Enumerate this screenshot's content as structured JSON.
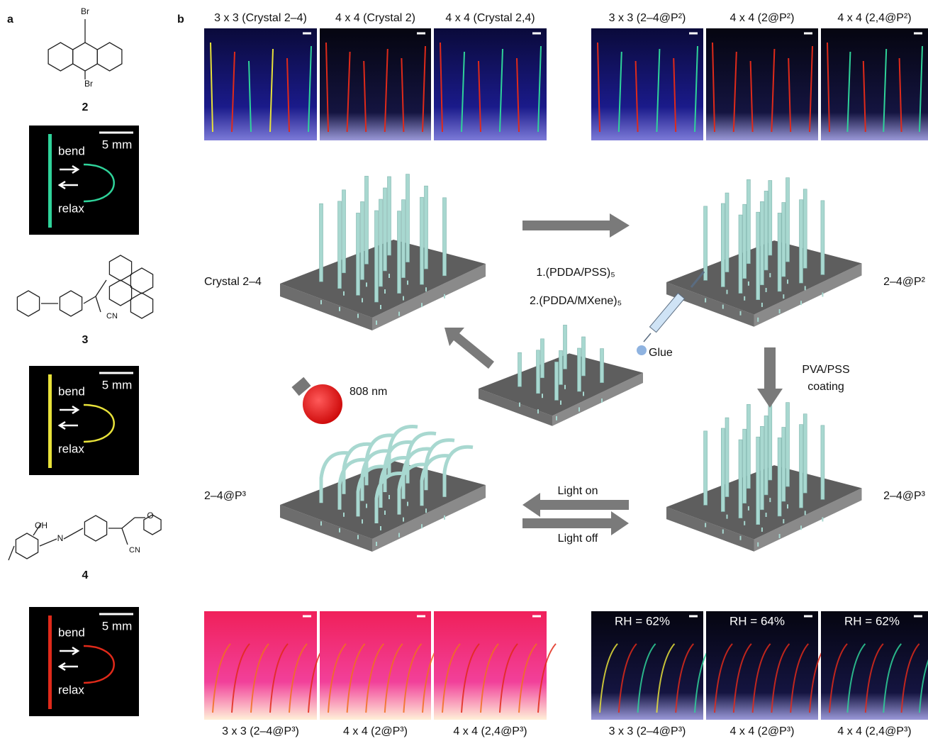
{
  "panel_a": {
    "label": "a",
    "compounds": [
      {
        "number": "2",
        "atoms": [
          "Br",
          "Br"
        ]
      },
      {
        "number": "3",
        "atoms": [
          "CN"
        ]
      },
      {
        "number": "4",
        "atoms": [
          "OH",
          "N",
          "CN",
          "O"
        ]
      }
    ],
    "photos": [
      {
        "scale_bar": "5 mm",
        "bend": "bend",
        "relax": "relax"
      },
      {
        "scale_bar": "5 mm",
        "bend": "bend",
        "relax": "relax"
      },
      {
        "scale_bar": "5 mm",
        "bend": "bend",
        "relax": "relax"
      }
    ]
  },
  "panel_b": {
    "label": "b",
    "top_photos": [
      "3 x 3 (Crystal 2–4)",
      "4 x 4 (Crystal 2)",
      "4 x 4 (Crystal 2,4)",
      "3 x 3 (2–4@P²)",
      "4 x 4 (2@P²)",
      "4 x 4 (2,4@P²)"
    ],
    "bottom_photos": [
      {
        "caption": "3 x 3 (2–4@P³)"
      },
      {
        "caption": "4 x 4 (2@P³)"
      },
      {
        "caption": "4 x 4 (2,4@P³)"
      },
      {
        "caption": "3 x 3 (2–4@P³)",
        "rh": "RH = 62%"
      },
      {
        "caption": "4 x 4 (2@P³)",
        "rh": "RH = 64%"
      },
      {
        "caption": "4 x 4 (2,4@P³)",
        "rh": "RH = 62%"
      }
    ],
    "diagram": {
      "crystal": "Crystal 2–4",
      "coated_p2": "2–4@P²",
      "step1": "1.(PDDA/PSS)₅",
      "step2": "2.(PDDA/MXene)₅",
      "glue": "Glue",
      "coating": [
        "PVA/PSS",
        "coating"
      ],
      "light": "808 nm",
      "coated_p3_left": "2–4@P³",
      "coated_p3_right": "2–4@P³",
      "light_on": "Light on",
      "light_off": "Light off"
    }
  }
}
